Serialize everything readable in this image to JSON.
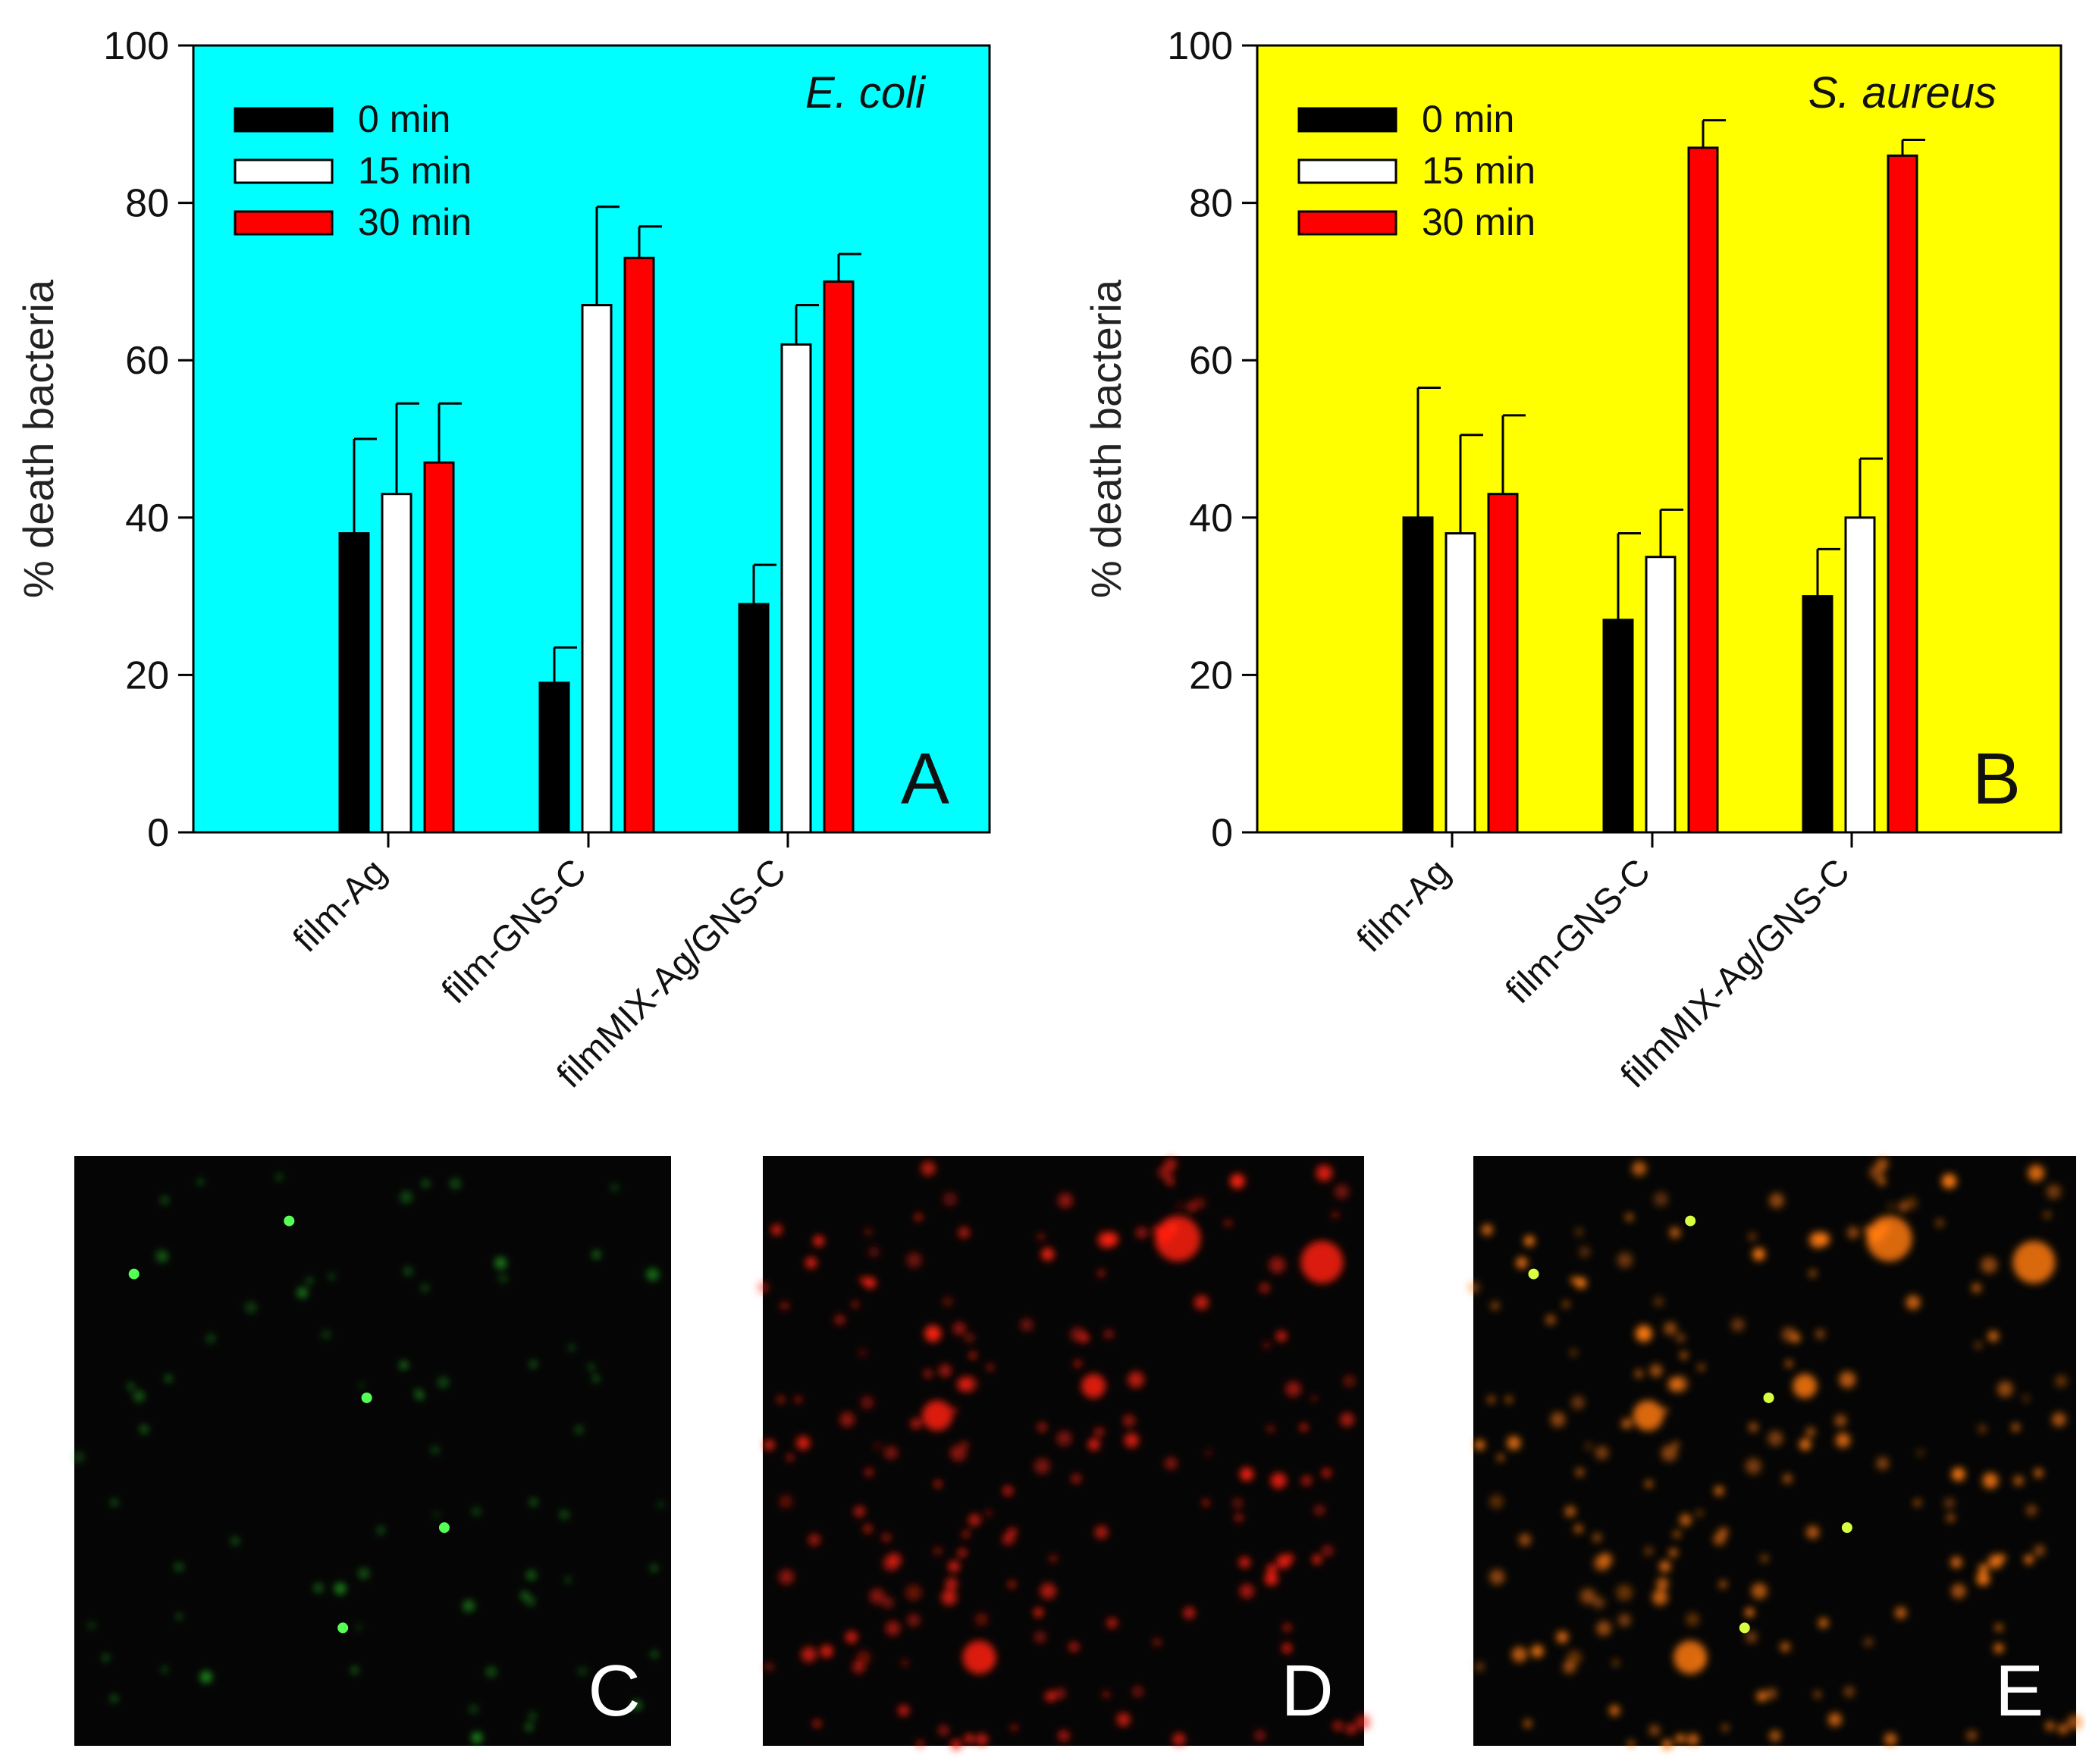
{
  "figure": {
    "micro_panels": [
      {
        "letter": "C",
        "tint": "green"
      },
      {
        "letter": "D",
        "tint": "red"
      },
      {
        "letter": "E",
        "tint": "merge"
      }
    ]
  },
  "chart_data": [
    {
      "panel": "A",
      "type": "bar",
      "organism": "E. coli",
      "background": "#00ffff",
      "title": "",
      "ylabel": "% death bacteria",
      "xlabel": "",
      "ylim": [
        0,
        100
      ],
      "yticks": [
        0,
        20,
        40,
        60,
        80,
        100
      ],
      "legend_position": "top-left",
      "categories": [
        "film-Ag",
        "film-GNS-C",
        "filmMIX-Ag/GNS-C"
      ],
      "series": [
        {
          "name": "0 min",
          "color": "#000000",
          "values": [
            38,
            19,
            29
          ],
          "errors": [
            12,
            4.5,
            5
          ]
        },
        {
          "name": "15 min",
          "color": "#ffffff",
          "values": [
            43,
            67,
            62
          ],
          "errors": [
            11.5,
            12.5,
            5
          ]
        },
        {
          "name": "30 min",
          "color": "#ff0000",
          "values": [
            47,
            73,
            70
          ],
          "errors": [
            7.5,
            4,
            3.5
          ]
        }
      ]
    },
    {
      "panel": "B",
      "type": "bar",
      "organism": "S. aureus",
      "background": "#ffff00",
      "title": "",
      "ylabel": "% death bacteria",
      "xlabel": "",
      "ylim": [
        0,
        100
      ],
      "yticks": [
        0,
        20,
        40,
        60,
        80,
        100
      ],
      "legend_position": "top-left",
      "categories": [
        "film-Ag",
        "film-GNS-C",
        "filmMIX-Ag/GNS-C"
      ],
      "series": [
        {
          "name": "0 min",
          "color": "#000000",
          "values": [
            40,
            27,
            30
          ],
          "errors": [
            16.5,
            11,
            6
          ]
        },
        {
          "name": "15 min",
          "color": "#ffffff",
          "values": [
            38,
            35,
            40
          ],
          "errors": [
            12.5,
            6,
            7.5
          ]
        },
        {
          "name": "30 min",
          "color": "#ff0000",
          "values": [
            43,
            87,
            86
          ],
          "errors": [
            10,
            3.5,
            2
          ]
        }
      ]
    }
  ]
}
